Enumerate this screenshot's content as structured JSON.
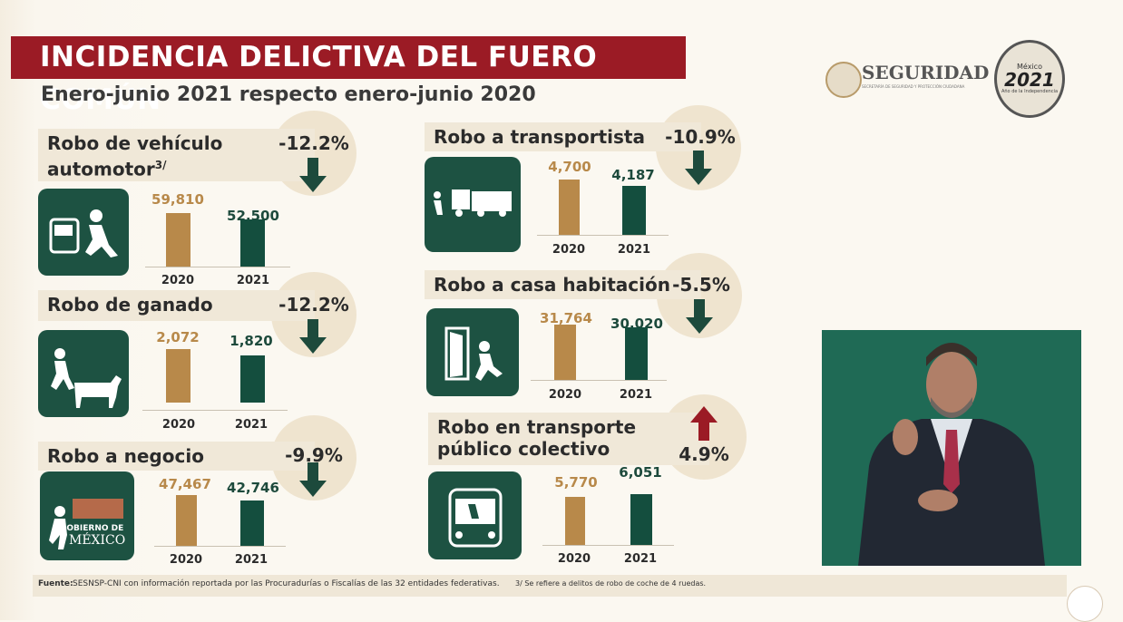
{
  "header": {
    "title": "INCIDENCIA DELICTIVA DEL FUERO COMÚN",
    "subtitle": "Enero-junio 2021 respecto enero-junio 2020"
  },
  "logos": {
    "seguridad": "SEGURIDAD",
    "seguridad_sub": "SECRETARÍA DE SEGURIDAD Y PROTECCIÓN CIUDADANA",
    "year_badge_top": "México",
    "year_badge_year": "2021",
    "year_badge_sub": "Año de la Independencia",
    "gob_watermark_1": "GOBIERNO DE",
    "gob_watermark_2": "MÉXICO"
  },
  "colors": {
    "title_bg": "#9b1b25",
    "bar_2020": "#b8894a",
    "bar_2021": "#144e3e",
    "icon_bg": "#1d5242",
    "arrow_down": "#1d4a3c",
    "arrow_up": "#9b1b25"
  },
  "panels": [
    {
      "title1": "Robo de vehículo",
      "title2": "automotor",
      "sup": "3/",
      "pct": "-12.2%",
      "direction": "down",
      "icon": "car-theft-icon",
      "v2020": "59,810",
      "v2021": "52,500"
    },
    {
      "title1": "Robo de ganado",
      "pct": "-12.2%",
      "direction": "down",
      "icon": "cattle-theft-icon",
      "v2020": "2,072",
      "v2021": "1,820"
    },
    {
      "title1": "Robo a negocio",
      "pct": "-9.9%",
      "direction": "down",
      "icon": "business-robbery-icon",
      "v2020": "47,467",
      "v2021": "42,746"
    },
    {
      "title1": "Robo a transportista",
      "pct": "-10.9%",
      "direction": "down",
      "icon": "truck-theft-icon",
      "v2020": "4,700",
      "v2021": "4,187"
    },
    {
      "title1": "Robo a casa habitación",
      "pct": "-5.5%",
      "direction": "down",
      "icon": "house-burglary-icon",
      "v2020": "31,764",
      "v2021": "30,020"
    },
    {
      "title1": "Robo en transporte",
      "title2": "público colectivo",
      "pct": "4.9%",
      "direction": "up",
      "icon": "bus-robbery-icon",
      "v2020": "5,770",
      "v2021": "6,051"
    }
  ],
  "years": {
    "y1": "2020",
    "y2": "2021"
  },
  "footer": {
    "source_label": "Fuente:",
    "source_text": "SESNSP-CNI con información reportada por las Procuradurías o Fiscalías de las 32 entidades federativas.",
    "note": "3/ Se refiere a delitos de robo de coche de 4 ruedas."
  },
  "chart_data": [
    {
      "type": "bar",
      "title": "Robo de vehículo automotor",
      "categories": [
        "2020",
        "2021"
      ],
      "values": [
        59810,
        52500
      ],
      "change": "-12.2%"
    },
    {
      "type": "bar",
      "title": "Robo de ganado",
      "categories": [
        "2020",
        "2021"
      ],
      "values": [
        2072,
        1820
      ],
      "change": "-12.2%"
    },
    {
      "type": "bar",
      "title": "Robo a negocio",
      "categories": [
        "2020",
        "2021"
      ],
      "values": [
        47467,
        42746
      ],
      "change": "-9.9%"
    },
    {
      "type": "bar",
      "title": "Robo a transportista",
      "categories": [
        "2020",
        "2021"
      ],
      "values": [
        4700,
        4187
      ],
      "change": "-10.9%"
    },
    {
      "type": "bar",
      "title": "Robo a casa habitación",
      "categories": [
        "2020",
        "2021"
      ],
      "values": [
        31764,
        30020
      ],
      "change": "-5.5%"
    },
    {
      "type": "bar",
      "title": "Robo en transporte público colectivo",
      "categories": [
        "2020",
        "2021"
      ],
      "values": [
        5770,
        6051
      ],
      "change": "4.9%"
    }
  ]
}
